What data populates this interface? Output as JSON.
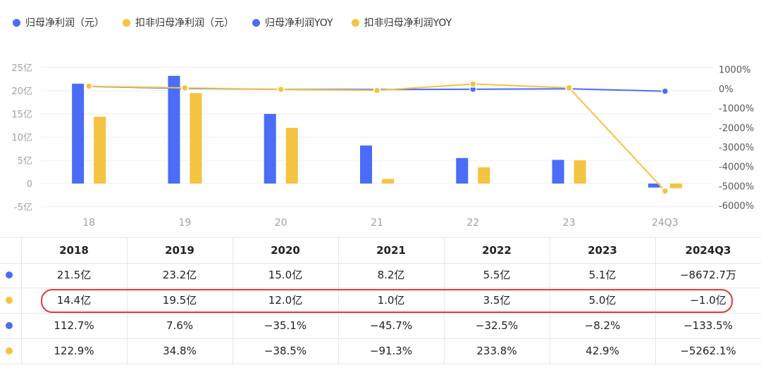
{
  "legend": [
    {
      "label": "归母净利润（元）",
      "color": "#4a6cf7"
    },
    {
      "label": "扣非归母净利润（元）",
      "color": "#f5c342"
    },
    {
      "label": "归母净利润YOY",
      "color": "#4a6cf7"
    },
    {
      "label": "扣非归母净利润YOY",
      "color": "#f5c342"
    }
  ],
  "chart_data": {
    "type": "bar",
    "categories": [
      "18",
      "19",
      "20",
      "21",
      "22",
      "23",
      "24Q3"
    ],
    "series": [
      {
        "name": "归母净利润（元）",
        "kind": "bar",
        "axis": "left",
        "color": "#4a6cf7",
        "values": [
          21.5,
          23.2,
          15.0,
          8.2,
          5.5,
          5.1,
          -0.867
        ]
      },
      {
        "name": "扣非归母净利润（元）",
        "kind": "bar",
        "axis": "left",
        "color": "#f5c342",
        "values": [
          14.4,
          19.5,
          12.0,
          1.0,
          3.5,
          5.0,
          -1.0
        ]
      },
      {
        "name": "归母净利润YOY",
        "kind": "line",
        "axis": "right",
        "color": "#4a6cf7",
        "values": [
          112.7,
          7.6,
          -35.1,
          -45.7,
          -32.5,
          -8.2,
          -133.5
        ]
      },
      {
        "name": "扣非归母净利润YOY",
        "kind": "line",
        "axis": "right",
        "color": "#f5c342",
        "values": [
          122.9,
          34.8,
          -38.5,
          -91.3,
          233.8,
          42.9,
          -5262.1
        ]
      }
    ],
    "y_left": {
      "ticks": [
        25,
        20,
        15,
        10,
        5,
        0,
        -5
      ],
      "tick_labels": [
        "25亿",
        "20亿",
        "15亿",
        "10亿",
        "5亿",
        "0",
        "-5亿"
      ],
      "range": [
        -5,
        25
      ]
    },
    "y_right": {
      "ticks": [
        1000,
        0,
        -1000,
        -2000,
        -3000,
        -4000,
        -5000,
        -6000
      ],
      "tick_labels": [
        "1000%",
        "0%",
        "-1000%",
        "-2000%",
        "-3000%",
        "-4000%",
        "-5000%",
        "-6000%"
      ],
      "range": [
        -6000,
        1000
      ]
    },
    "grid": true,
    "legend_position": "top-left"
  },
  "table": {
    "headers": [
      "2018",
      "2019",
      "2020",
      "2021",
      "2022",
      "2023",
      "2024Q3"
    ],
    "rows": [
      {
        "color": "#4a6cf7",
        "cells": [
          "21.5亿",
          "23.2亿",
          "15.0亿",
          "8.2亿",
          "5.5亿",
          "5.1亿",
          "−8672.7万"
        ]
      },
      {
        "color": "#f5c342",
        "cells": [
          "14.4亿",
          "19.5亿",
          "12.0亿",
          "1.0亿",
          "3.5亿",
          "5.0亿",
          "−1.0亿"
        ]
      },
      {
        "color": "#4a6cf7",
        "cells": [
          "112.7%",
          "7.6%",
          "−35.1%",
          "−45.7%",
          "−32.5%",
          "−8.2%",
          "−133.5%"
        ]
      },
      {
        "color": "#f5c342",
        "cells": [
          "122.9%",
          "34.8%",
          "−38.5%",
          "−91.3%",
          "233.8%",
          "42.9%",
          "−5262.1%"
        ]
      }
    ]
  }
}
